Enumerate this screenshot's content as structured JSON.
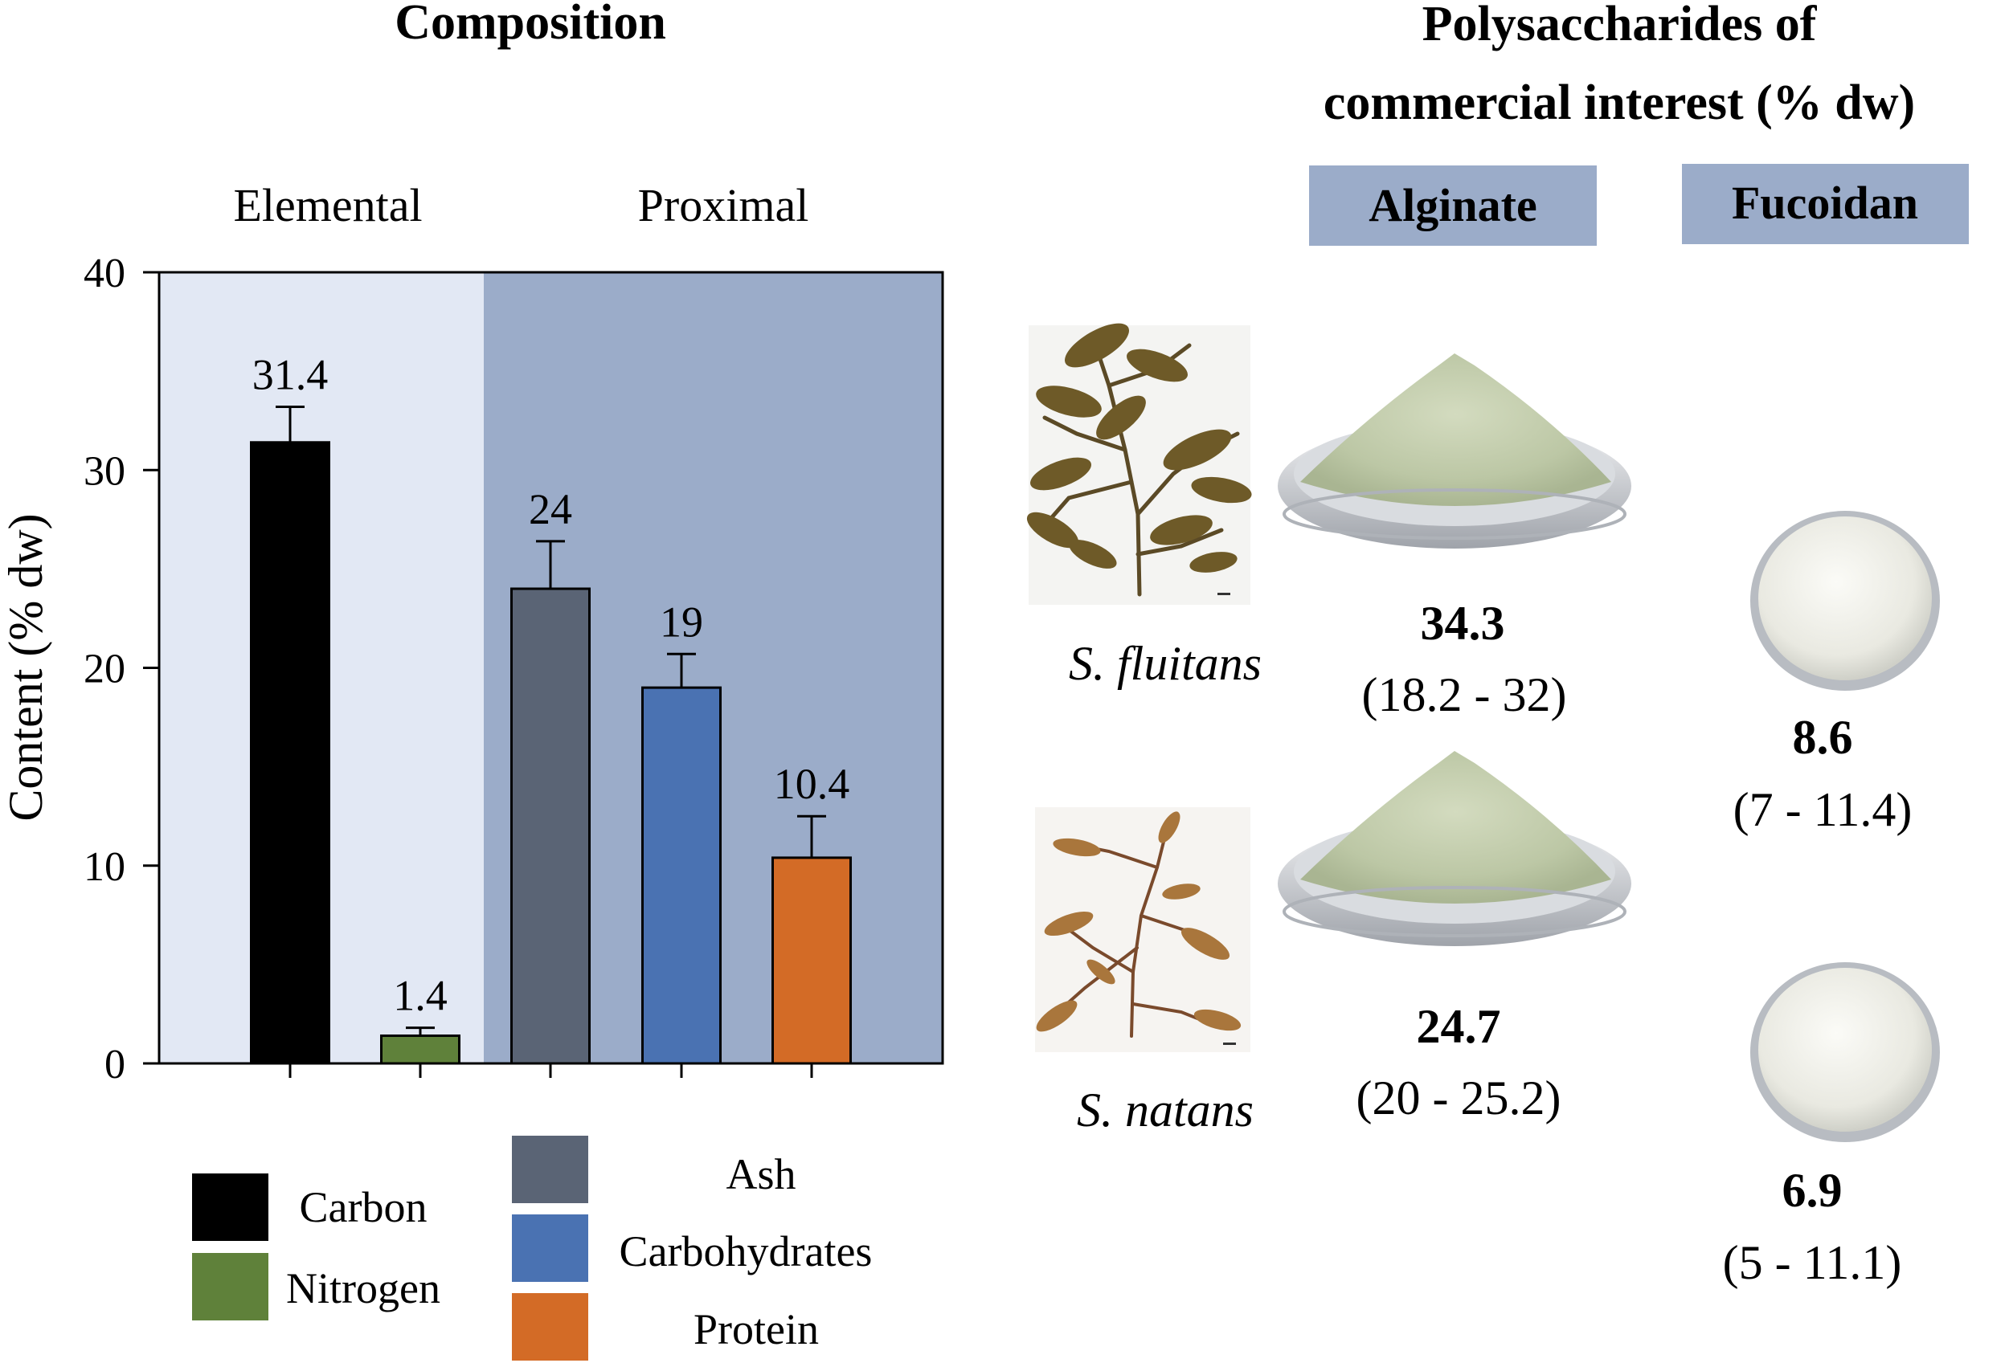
{
  "left_panel": {
    "title": "Composition",
    "group_labels": [
      "Elemental",
      "Proximal"
    ],
    "legend": [
      {
        "label": "Carbon",
        "color": "#000000"
      },
      {
        "label": "Nitrogen",
        "color": "#5f813a"
      },
      {
        "label": "Ash",
        "color": "#5a6475"
      },
      {
        "label": "Carbohydrates",
        "color": "#4a72b2"
      },
      {
        "label": "Protein",
        "color": "#d36b26"
      }
    ],
    "background_colors": {
      "elemental": "#e2e8f4",
      "proximal": "#9bacc9"
    }
  },
  "chart_data": {
    "type": "bar",
    "title": "",
    "categories": [
      "Carbon",
      "Nitrogen",
      "Ash",
      "Carbohydrates",
      "Protein"
    ],
    "values": [
      31.4,
      1.4,
      24,
      19,
      10.4
    ],
    "error_upper": [
      33.2,
      1.8,
      26.4,
      20.7,
      12.5
    ],
    "value_labels": [
      "31.4",
      "1.4",
      "24",
      "19",
      "10.4"
    ],
    "colors": [
      "#000000",
      "#5f813a",
      "#5a6475",
      "#4a72b2",
      "#d36b26"
    ],
    "ylabel": "Content (% dw)",
    "xlabel": "",
    "ylim": [
      0,
      40
    ],
    "yticks": [
      0,
      10,
      20,
      30,
      40
    ],
    "grid": false
  },
  "right_panel": {
    "title_line1": "Polysaccharides of",
    "title_line2": "commercial interest (% dw)",
    "column_headers": [
      "Alginate",
      "Fucoidan"
    ],
    "header_color": "#9bacc9",
    "species": [
      {
        "name": "S. fluitans",
        "alginate": {
          "value": "34.3",
          "range": "(18.2 - 32)"
        },
        "fucoidan": {
          "value": "8.6",
          "range": "(7 - 11.4)"
        }
      },
      {
        "name": "S. natans",
        "alginate": {
          "value": "24.7",
          "range": "(20 - 25.2)"
        },
        "fucoidan": {
          "value": "6.9",
          "range": "(5 - 11.1)"
        }
      }
    ]
  }
}
